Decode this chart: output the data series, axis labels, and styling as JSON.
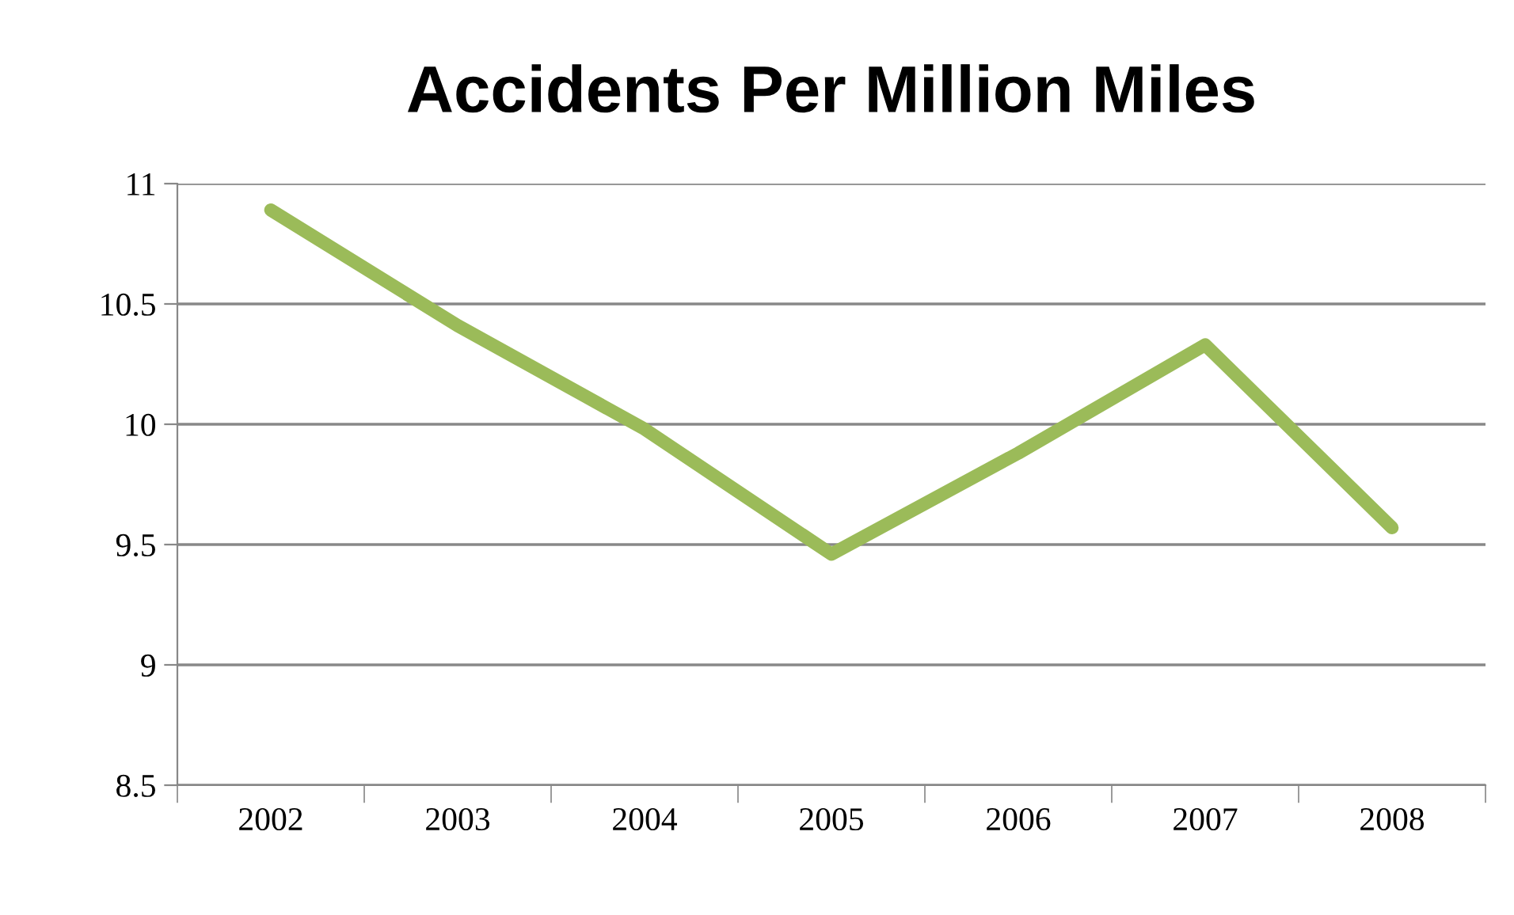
{
  "chart_data": {
    "type": "line",
    "title": "Accidents Per Million Miles",
    "categories": [
      "2002",
      "2003",
      "2004",
      "2005",
      "2006",
      "2007",
      "2008"
    ],
    "series": [
      {
        "color": "#9bbb59",
        "values": [
          10.89,
          10.41,
          9.98,
          9.46,
          9.88,
          10.33,
          9.57
        ]
      }
    ],
    "ylim": [
      8.5,
      11
    ],
    "yticks": [
      8.5,
      9,
      9.5,
      10,
      10.5,
      11
    ],
    "grid": "y",
    "legend": false,
    "marker": "none",
    "line_style": "solid"
  }
}
